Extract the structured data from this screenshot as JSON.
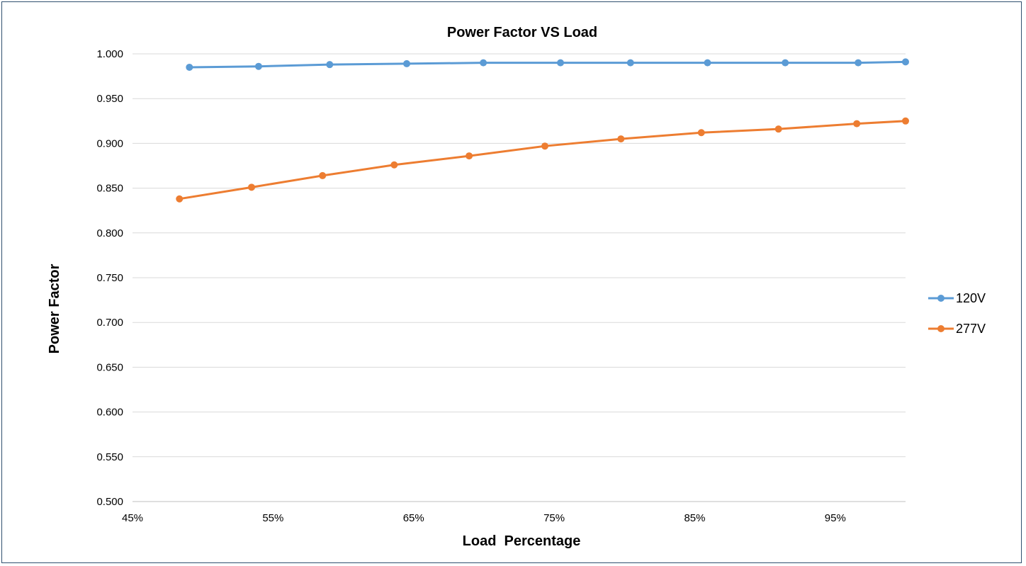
{
  "chart_data": {
    "type": "line",
    "title": "Power Factor VS Load",
    "xlabel": "Load  Percentage",
    "ylabel": "Power Factor",
    "xlim": [
      0.45,
      1.0
    ],
    "ylim": [
      0.5,
      1.0
    ],
    "x_ticks": [
      "45%",
      "55%",
      "65%",
      "75%",
      "85%",
      "95%"
    ],
    "y_ticks": [
      "0.500",
      "0.550",
      "0.600",
      "0.650",
      "0.700",
      "0.750",
      "0.800",
      "0.850",
      "0.900",
      "0.950",
      "1.000"
    ],
    "grid": "horizontal",
    "legend_position": "right",
    "series": [
      {
        "name": "120V",
        "color": "#5b9bd5",
        "x": [
          0.4905,
          0.5397,
          0.5903,
          0.6451,
          0.6996,
          0.7545,
          0.8043,
          0.8591,
          0.9144,
          0.9663,
          1.0
        ],
        "y": [
          0.985,
          0.986,
          0.988,
          0.989,
          0.99,
          0.99,
          0.99,
          0.99,
          0.99,
          0.99,
          0.991
        ]
      },
      {
        "name": "277V",
        "color": "#ed7d31",
        "x": [
          0.4834,
          0.5347,
          0.5852,
          0.6362,
          0.6895,
          0.7434,
          0.7975,
          0.8547,
          0.9096,
          0.9653,
          1.0
        ],
        "y": [
          0.838,
          0.851,
          0.864,
          0.876,
          0.886,
          0.897,
          0.905,
          0.912,
          0.916,
          0.922,
          0.925
        ]
      }
    ]
  }
}
